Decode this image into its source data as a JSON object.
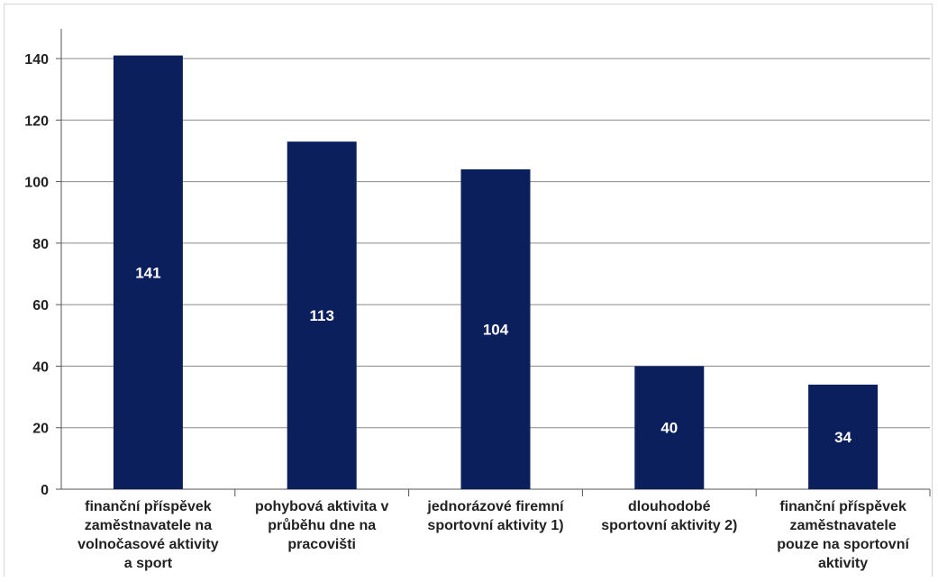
{
  "chart_data": {
    "type": "bar",
    "categories": [
      [
        "finanční příspěvek",
        "zaměstnavatele na",
        "volnočasové aktivity",
        "a sport"
      ],
      [
        "pohybová aktivita v",
        "průběhu dne na",
        "pracovišti"
      ],
      [
        "jednorázové firemní",
        "sportovní  aktivity 1)"
      ],
      [
        "dlouhodobé",
        "sportovní aktivity 2)"
      ],
      [
        "finanční příspěvek",
        "zaměstnavatele",
        "pouze na sportovní",
        "aktivity"
      ]
    ],
    "values": [
      141,
      113,
      104,
      40,
      34
    ],
    "data_labels": [
      "141",
      "113",
      "104",
      "40",
      "34"
    ],
    "y_ticks": [
      "0",
      "20",
      "40",
      "60",
      "80",
      "100",
      "120",
      "140"
    ],
    "ylim": [
      0,
      150
    ],
    "grid": true,
    "bar_color": "#0b1f5c",
    "title": "",
    "xlabel": "",
    "ylabel": ""
  }
}
